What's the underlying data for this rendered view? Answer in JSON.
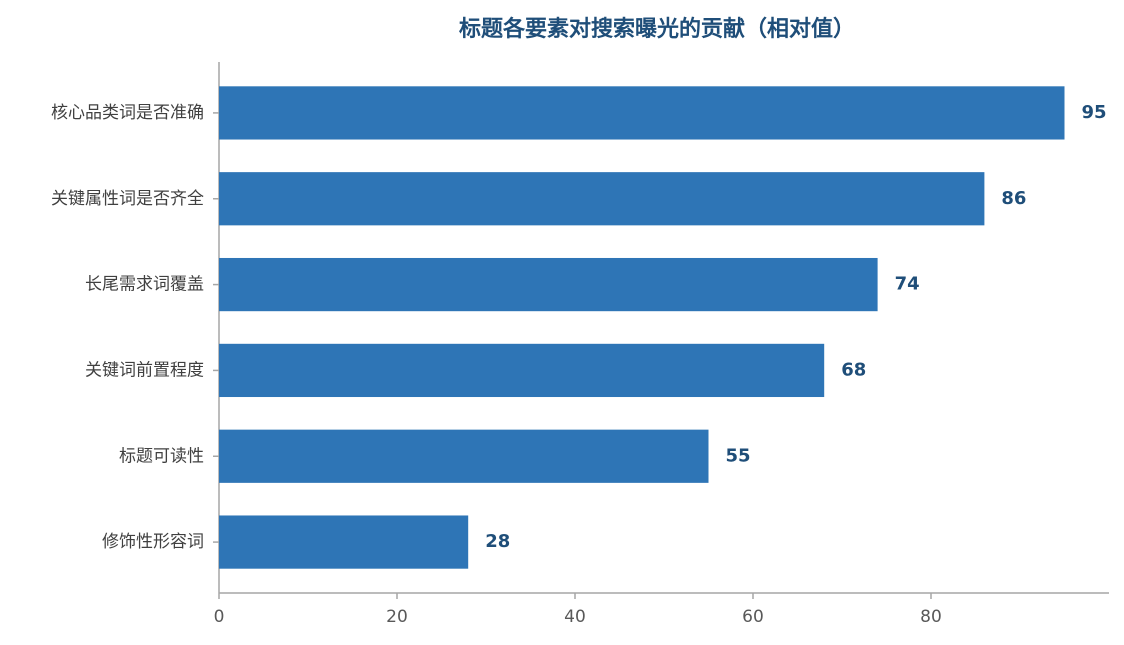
{
  "chart_data": {
    "type": "bar",
    "orientation": "horizontal",
    "title": "标题各要素对搜索曝光的贡献（相对值）",
    "categories": [
      "核心品类词是否准确",
      "关键属性词是否齐全",
      "长尾需求词覆盖",
      "关键词前置程度",
      "标题可读性",
      "修饰性形容词"
    ],
    "values": [
      95,
      86,
      74,
      68,
      55,
      28
    ],
    "color": "#2e75b6",
    "title_color": "#1f4e79",
    "label_color": "#1f4e79",
    "xlim": [
      0,
      100
    ],
    "xticks": [
      0,
      20,
      40,
      60,
      80
    ],
    "grid": false
  }
}
